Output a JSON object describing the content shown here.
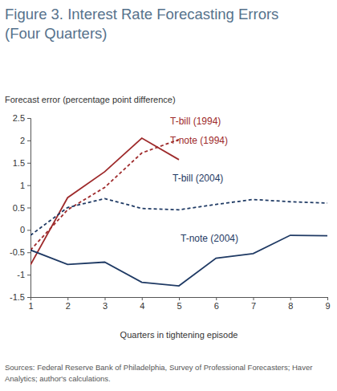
{
  "chart_data": {
    "type": "line",
    "title": "Figure 3. Interest Rate Forecasting Errors (Four Quarters)",
    "y_label": "Forecast error (percentage point difference)",
    "x_label": "Quarters in tightening episode",
    "source": "Sources: Federal Reserve Bank of Philadelphia, Survey of Professional Forecasters; Haver Analytics; author's calculations.",
    "x": [
      1,
      2,
      3,
      4,
      5,
      6,
      7,
      8,
      9
    ],
    "xlim": [
      1,
      9
    ],
    "xticks": [
      1,
      2,
      3,
      4,
      5,
      6,
      7,
      8,
      9
    ],
    "ylim": [
      -1.5,
      2.5
    ],
    "yticks": [
      -1.5,
      -1,
      -0.5,
      0,
      0.5,
      1,
      1.5,
      2,
      2.5
    ],
    "grid": false,
    "series": [
      {
        "name": "T-bill (1994)",
        "color": "#9e2a2b",
        "line_style": "dashed",
        "values": [
          -0.45,
          0.45,
          0.95,
          1.72,
          2.02,
          null,
          null,
          null,
          null
        ]
      },
      {
        "name": "T-note (1994)",
        "color": "#9e2a2b",
        "line_style": "solid",
        "values": [
          -0.78,
          0.72,
          1.3,
          2.05,
          1.57,
          null,
          null,
          null,
          null
        ]
      },
      {
        "name": "T-bill (2004)",
        "color": "#1f3a64",
        "line_style": "dashed",
        "values": [
          -0.12,
          0.5,
          0.7,
          0.48,
          0.45,
          0.57,
          0.68,
          0.63,
          0.6
        ]
      },
      {
        "name": "T-note (2004)",
        "color": "#1f3a64",
        "line_style": "solid",
        "values": [
          -0.45,
          -0.77,
          -0.72,
          -1.17,
          -1.25,
          -0.63,
          -0.53,
          -0.12,
          -0.13
        ]
      }
    ]
  }
}
